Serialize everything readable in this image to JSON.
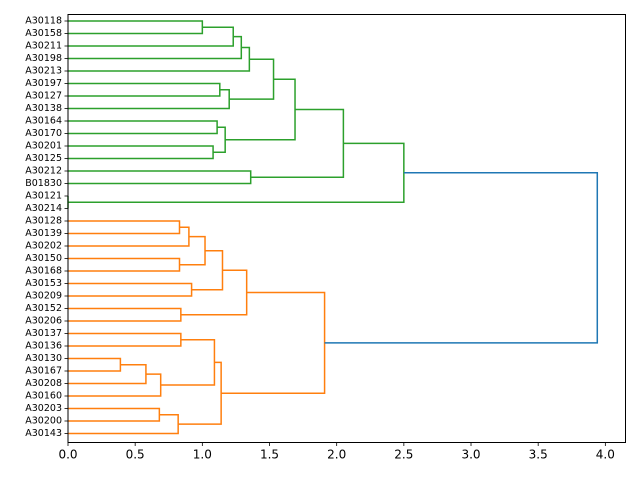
{
  "chart_data": {
    "type": "dendrogram",
    "orientation": "horizontal",
    "xlim": [
      0.0,
      4.15
    ],
    "x_ticks": [
      0.0,
      0.5,
      1.0,
      1.5,
      2.0,
      2.5,
      3.0,
      3.5,
      4.0
    ],
    "x_tick_labels": [
      "0.0",
      "0.5",
      "1.0",
      "1.5",
      "2.0",
      "2.5",
      "3.0",
      "3.5",
      "4.0"
    ],
    "leaves": [
      "A30118",
      "A30158",
      "A30211",
      "A30198",
      "A30213",
      "A30197",
      "A30127",
      "A30138",
      "A30164",
      "A30170",
      "A30201",
      "A30125",
      "A30212",
      "B01830",
      "A30121",
      "A30214",
      "A30128",
      "A30139",
      "A30202",
      "A30150",
      "A30168",
      "A30153",
      "A30209",
      "A30152",
      "A30206",
      "A30137",
      "A30136",
      "A30130",
      "A30167",
      "A30208",
      "A30160",
      "A30203",
      "A30200",
      "A30143"
    ],
    "colors": {
      "cluster_1": "#2ca02c",
      "cluster_2": "#ff7f0e",
      "root": "#1f77b4"
    },
    "merges": [
      {
        "id": "g1",
        "a": "A30118",
        "b": "A30158",
        "height": 1.0,
        "color": "cluster_1"
      },
      {
        "id": "g2",
        "a": "g1",
        "b": "A30211",
        "height": 1.23,
        "color": "cluster_1"
      },
      {
        "id": "g3",
        "a": "g2",
        "b": "A30198",
        "height": 1.29,
        "color": "cluster_1"
      },
      {
        "id": "g4",
        "a": "g3",
        "b": "A30213",
        "height": 1.35,
        "color": "cluster_1"
      },
      {
        "id": "g5",
        "a": "A30197",
        "b": "A30127",
        "height": 1.13,
        "color": "cluster_1"
      },
      {
        "id": "g6",
        "a": "g5",
        "b": "A30138",
        "height": 1.2,
        "color": "cluster_1"
      },
      {
        "id": "g7",
        "a": "g4",
        "b": "g6",
        "height": 1.53,
        "color": "cluster_1"
      },
      {
        "id": "g8",
        "a": "A30164",
        "b": "A30170",
        "height": 1.11,
        "color": "cluster_1"
      },
      {
        "id": "g9",
        "a": "A30201",
        "b": "A30125",
        "height": 1.08,
        "color": "cluster_1"
      },
      {
        "id": "g10",
        "a": "g8",
        "b": "g9",
        "height": 1.17,
        "color": "cluster_1"
      },
      {
        "id": "g11",
        "a": "g7",
        "b": "g10",
        "height": 1.69,
        "color": "cluster_1"
      },
      {
        "id": "g12",
        "a": "A30212",
        "b": "B01830",
        "height": 1.36,
        "color": "cluster_1"
      },
      {
        "id": "g13",
        "a": "g11",
        "b": "g12",
        "height": 2.05,
        "color": "cluster_1"
      },
      {
        "id": "g14",
        "a": "A30121",
        "b": "A30214",
        "height": 0.0,
        "color": "cluster_1"
      },
      {
        "id": "g15",
        "a": "g13",
        "b": "g14",
        "height": 2.5,
        "color": "cluster_1"
      },
      {
        "id": "o1",
        "a": "A30128",
        "b": "A30139",
        "height": 0.83,
        "color": "cluster_2"
      },
      {
        "id": "o2",
        "a": "o1",
        "b": "A30202",
        "height": 0.9,
        "color": "cluster_2"
      },
      {
        "id": "o3",
        "a": "A30150",
        "b": "A30168",
        "height": 0.83,
        "color": "cluster_2"
      },
      {
        "id": "o4",
        "a": "o2",
        "b": "o3",
        "height": 1.02,
        "color": "cluster_2"
      },
      {
        "id": "o5",
        "a": "A30153",
        "b": "A30209",
        "height": 0.92,
        "color": "cluster_2"
      },
      {
        "id": "o6",
        "a": "o4",
        "b": "o5",
        "height": 1.15,
        "color": "cluster_2"
      },
      {
        "id": "o7",
        "a": "A30152",
        "b": "A30206",
        "height": 0.84,
        "color": "cluster_2"
      },
      {
        "id": "o8",
        "a": "o6",
        "b": "o7",
        "height": 1.33,
        "color": "cluster_2"
      },
      {
        "id": "o9",
        "a": "A30137",
        "b": "A30136",
        "height": 0.84,
        "color": "cluster_2"
      },
      {
        "id": "o10",
        "a": "A30130",
        "b": "A30167",
        "height": 0.39,
        "color": "cluster_2"
      },
      {
        "id": "o11",
        "a": "o10",
        "b": "A30208",
        "height": 0.58,
        "color": "cluster_2"
      },
      {
        "id": "o12",
        "a": "o11",
        "b": "A30160",
        "height": 0.69,
        "color": "cluster_2"
      },
      {
        "id": "o13",
        "a": "o9",
        "b": "o12",
        "height": 1.09,
        "color": "cluster_2"
      },
      {
        "id": "o14",
        "a": "A30203",
        "b": "A30200",
        "height": 0.68,
        "color": "cluster_2"
      },
      {
        "id": "o15",
        "a": "o14",
        "b": "A30143",
        "height": 0.82,
        "color": "cluster_2"
      },
      {
        "id": "o16",
        "a": "o13",
        "b": "o15",
        "height": 1.14,
        "color": "cluster_2"
      },
      {
        "id": "o17",
        "a": "o8",
        "b": "o16",
        "height": 1.91,
        "color": "cluster_2"
      },
      {
        "id": "root",
        "a": "g15",
        "b": "o17",
        "height": 3.94,
        "color": "root"
      }
    ]
  }
}
